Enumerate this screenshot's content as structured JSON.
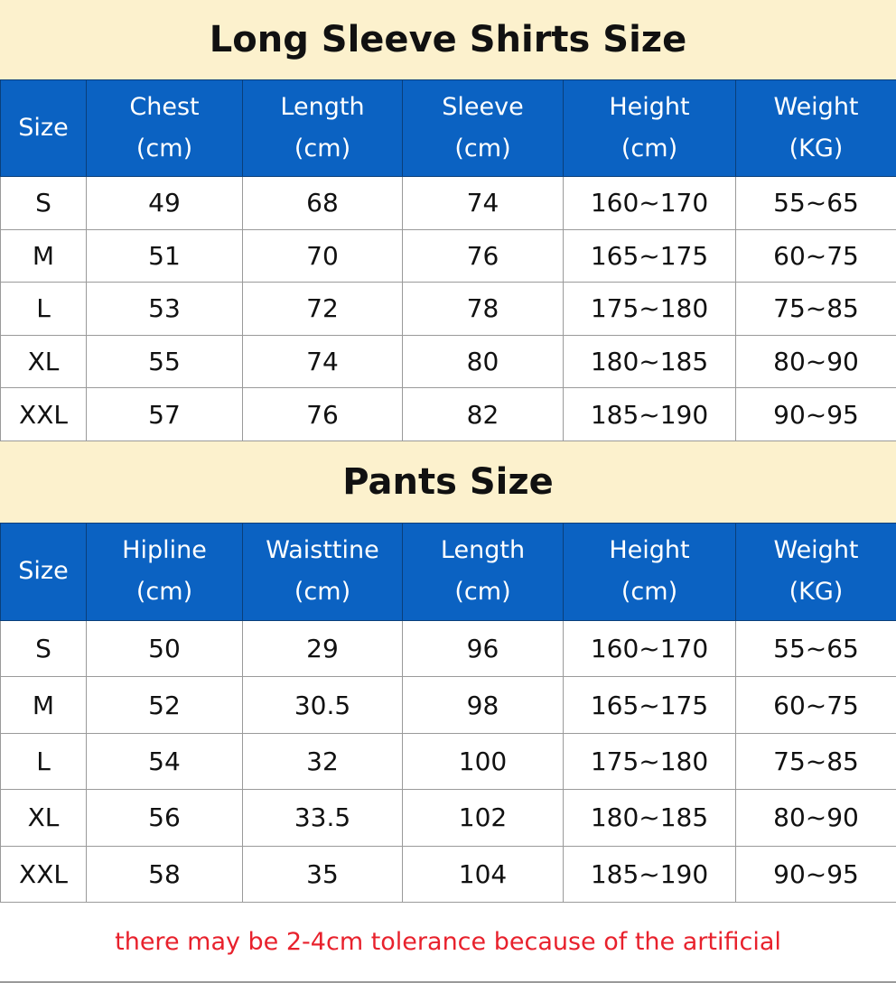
{
  "shirts": {
    "title": "Long Sleeve Shirts Size",
    "headers": [
      [
        "Size",
        ""
      ],
      [
        "Chest",
        "(cm)"
      ],
      [
        "Length",
        "(cm)"
      ],
      [
        "Sleeve",
        "(cm)"
      ],
      [
        "Height",
        "(cm)"
      ],
      [
        "Weight",
        "(KG)"
      ]
    ],
    "rows": [
      [
        "S",
        "49",
        "68",
        "74",
        "160~170",
        "55~65"
      ],
      [
        "M",
        "51",
        "70",
        "76",
        "165~175",
        "60~75"
      ],
      [
        "L",
        "53",
        "72",
        "78",
        "175~180",
        "75~85"
      ],
      [
        "XL",
        "55",
        "74",
        "80",
        "180~185",
        "80~90"
      ],
      [
        "XXL",
        "57",
        "76",
        "82",
        "185~190",
        "90~95"
      ]
    ]
  },
  "pants": {
    "title": "Pants Size",
    "headers": [
      [
        "Size",
        ""
      ],
      [
        "Hipline",
        "(cm)"
      ],
      [
        "Waisttine",
        "(cm)"
      ],
      [
        "Length",
        "(cm)"
      ],
      [
        "Height",
        "(cm)"
      ],
      [
        "Weight",
        "(KG)"
      ]
    ],
    "rows": [
      [
        "S",
        "50",
        "29",
        "96",
        "160~170",
        "55~65"
      ],
      [
        "M",
        "52",
        "30.5",
        "98",
        "165~175",
        "60~75"
      ],
      [
        "L",
        "54",
        "32",
        "100",
        "175~180",
        "75~85"
      ],
      [
        "XL",
        "56",
        "33.5",
        "102",
        "180~185",
        "80~90"
      ],
      [
        "XXL",
        "58",
        "35",
        "104",
        "185~190",
        "90~95"
      ]
    ]
  },
  "footer_note": "there may be 2-4cm tolerance because of the artificial",
  "colors": {
    "header_bg": "#0b62c2",
    "title_bg": "#fcf1cd",
    "note": "#e8212c"
  }
}
